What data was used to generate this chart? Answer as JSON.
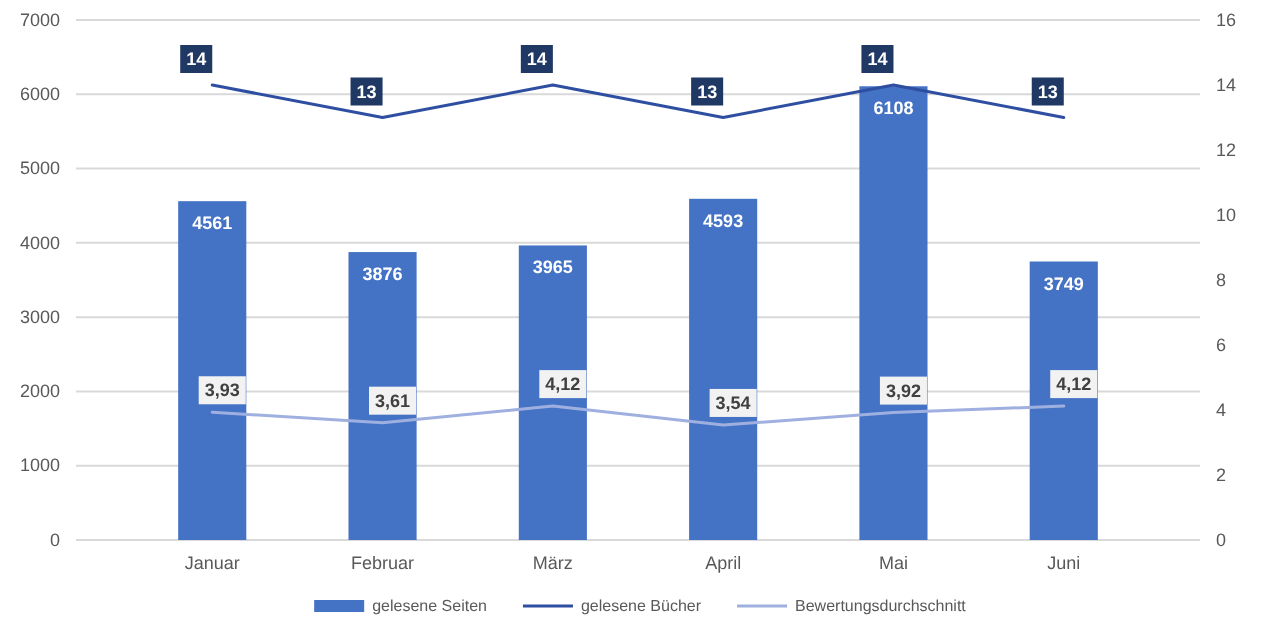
{
  "chart_data": {
    "type": "bar",
    "categories": [
      "Januar",
      "Februar",
      "März",
      "April",
      "Mai",
      "Juni"
    ],
    "series": [
      {
        "name": "gelesene Seiten",
        "color": "#4472c4",
        "values": [
          4561,
          3876,
          3965,
          4593,
          6108,
          3749
        ],
        "value_labels": [
          "4561",
          "3876",
          "3965",
          "4593",
          "6108",
          "3749"
        ]
      },
      {
        "name": "gelesene Bücher",
        "type": "line",
        "axis": "y2",
        "color": "#2e4ea1",
        "values": [
          14,
          13,
          14,
          13,
          14,
          13
        ],
        "value_labels": [
          "14",
          "13",
          "14",
          "13",
          "14",
          "13"
        ]
      },
      {
        "name": "Bewertungsdurchschnitt",
        "type": "line",
        "axis": "y2",
        "color": "#9fb0e0",
        "values": [
          3.93,
          3.61,
          4.12,
          3.54,
          3.92,
          4.12
        ],
        "value_labels": [
          "3,93",
          "3,61",
          "4,12",
          "3,54",
          "3,92",
          "4,12"
        ]
      }
    ],
    "ylim": [
      0,
      7000
    ],
    "yticks": [
      0,
      1000,
      2000,
      3000,
      4000,
      5000,
      6000,
      7000
    ],
    "y2lim": [
      0,
      16
    ],
    "y2ticks": [
      0,
      2,
      4,
      6,
      8,
      10,
      12,
      14,
      16
    ],
    "grid": "y",
    "legend": "bottom",
    "line_style": "solid"
  }
}
